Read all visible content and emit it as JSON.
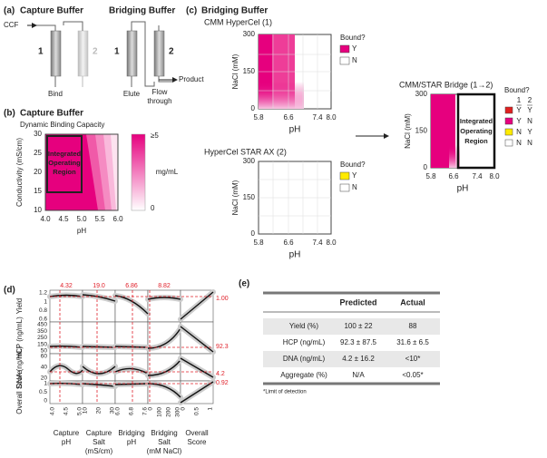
{
  "a": {
    "label": "(a)",
    "capture": "Capture Buffer",
    "bridging": "Bridging Buffer",
    "ccf": "CCF",
    "col1": "1",
    "col2": "2",
    "bind": "Bind",
    "col1b": "1",
    "col2b": "2",
    "elute": "Elute",
    "flow": [
      "Flow",
      "through"
    ],
    "product": "Product"
  },
  "b": {
    "label": "(b)",
    "title": "Capture Buffer",
    "subtitle": "Dynamic Binding Capacity",
    "ylabel": "Conductivity (mS/cm)",
    "xlabel": "pH",
    "xticks": [
      "4.0",
      "4.5",
      "5.0",
      "5.5",
      "6.0"
    ],
    "yticks": [
      "30",
      "25",
      "20",
      "15",
      "10"
    ],
    "region": [
      "Integrated",
      "Operating",
      "Region"
    ],
    "colorbar": {
      "max": "≥5",
      "unit": "mg/mL",
      "min": "0"
    }
  },
  "c": {
    "label": "(c)",
    "title": "Bridging Buffer",
    "top": {
      "title": "CMM HyperCel (1)",
      "ylabel": "NaCl (mM)",
      "yticks": [
        "300",
        "150",
        "0"
      ],
      "xticks": [
        "5.8",
        "6.6",
        "7.4",
        "8.0"
      ],
      "xlabel": "pH",
      "legend": "Bound?",
      "items": [
        "Y",
        "N"
      ]
    },
    "bottom": {
      "title": "HyperCel STAR AX (2)",
      "ylabel": "NaCl (mM)",
      "yticks": [
        "300",
        "150",
        "0"
      ],
      "xticks": [
        "5.8",
        "6.6",
        "7.4",
        "8.0"
      ],
      "xlabel": "pH",
      "legend": "Bound?",
      "items": [
        "Y",
        "N"
      ]
    },
    "bridge": {
      "title": "CMM/STAR Bridge (1→2)",
      "ylabel": "NaCl (mM)",
      "yticks": [
        "300",
        "150",
        "0"
      ],
      "xticks": [
        "5.8",
        "6.6",
        "7.4",
        "8.0"
      ],
      "xlabel": "pH",
      "region": [
        "Integrated",
        "Operating",
        "Region"
      ],
      "legend": "Bound?",
      "header": [
        "1",
        "2"
      ],
      "rows": [
        [
          "Y",
          "Y"
        ],
        [
          "Y",
          "N"
        ],
        [
          "N",
          "Y"
        ],
        [
          "N",
          "N"
        ]
      ]
    }
  },
  "d": {
    "label": "(d)",
    "rows": [
      "Yield",
      "HCP (ng/mL)",
      "DNA (ng/mL)",
      "Overall Score"
    ],
    "rowticks": [
      [
        "1.2",
        "1",
        "0.8",
        "0.6"
      ],
      [
        "450",
        "350",
        "250",
        "150",
        "50"
      ],
      [
        "60",
        "40",
        "20"
      ],
      [
        "1",
        "0.5",
        "0"
      ]
    ],
    "columns": [
      [
        "Capture",
        "pH"
      ],
      [
        "Capture",
        "Salt",
        "(mS/cm)"
      ],
      [
        "Bridging",
        "pH"
      ],
      [
        "Bridging",
        "Salt",
        "(mM NaCl)"
      ],
      [
        "Overall",
        "Score"
      ]
    ],
    "colticks": [
      [
        "4.0",
        "4.5",
        "5.0"
      ],
      [
        "10",
        "20",
        "30"
      ],
      [
        "6.0",
        "6.8",
        "7.6"
      ],
      [
        "0",
        "100",
        "200",
        "300"
      ],
      [
        "0",
        "0.5",
        "1"
      ]
    ],
    "current": [
      "4.32",
      "19.0",
      "6.86",
      "8.82"
    ],
    "responses": [
      "1.00",
      "92.3",
      "4.2",
      "0.92"
    ]
  },
  "e": {
    "label": "(e)",
    "header": [
      "Predicted",
      "Actual"
    ],
    "rows": [
      [
        "Yield (%)",
        "100 ± 22",
        "88"
      ],
      [
        "HCP (ng/mL)",
        "92.3 ± 87.5",
        "31.6 ± 6.5"
      ],
      [
        "DNA (ng/mL)",
        "4.2 ± 16.2",
        "<10*"
      ],
      [
        "Aggregate (%)",
        "N/A",
        "<0.05*"
      ]
    ],
    "footnote": "*Limit of detection"
  }
}
